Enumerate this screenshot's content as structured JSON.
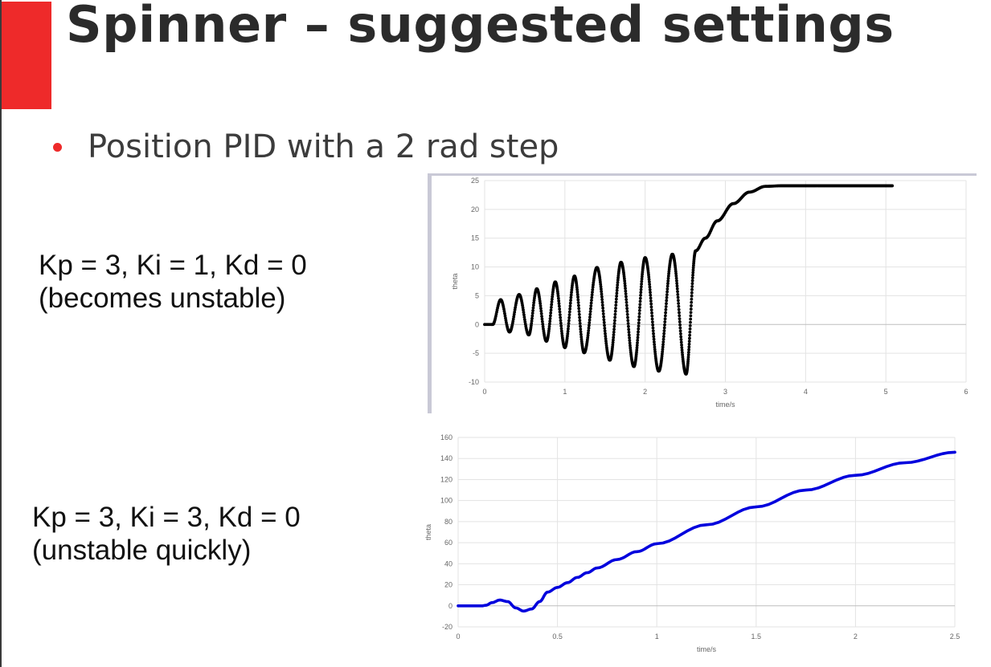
{
  "slide": {
    "title": "Spinner – suggested settings",
    "bullet": "Position PID with a 2 rad step",
    "accent_color": "#ee2a2a"
  },
  "cases": [
    {
      "line1": "Kp = 3, Ki = 1, Kd = 0",
      "line2": "(becomes unstable)"
    },
    {
      "line1": "Kp = 3, Ki = 3, Kd = 0",
      "line2": "(unstable quickly)"
    }
  ],
  "chart_data": [
    {
      "type": "scatter",
      "title": "",
      "xlabel": "time/s",
      "ylabel": "theta",
      "xlim": [
        0,
        6
      ],
      "ylim": [
        -10,
        25
      ],
      "xticks": [
        0,
        1,
        2,
        3,
        4,
        5,
        6
      ],
      "yticks": [
        -10,
        -5,
        0,
        5,
        10,
        15,
        20,
        25
      ],
      "grid": true,
      "color": "#000000",
      "points": [
        [
          0.0,
          0
        ],
        [
          0.08,
          0
        ],
        [
          0.1,
          0
        ],
        [
          0.2,
          4.3
        ],
        [
          0.31,
          -1.3
        ],
        [
          0.43,
          5.2
        ],
        [
          0.55,
          -1.8
        ],
        [
          0.65,
          6.2
        ],
        [
          0.77,
          -2.9
        ],
        [
          0.88,
          7.4
        ],
        [
          1.0,
          -4.0
        ],
        [
          1.12,
          8.4
        ],
        [
          1.24,
          -4.9
        ],
        [
          1.4,
          9.9
        ],
        [
          1.56,
          -6.2
        ],
        [
          1.7,
          10.8
        ],
        [
          1.86,
          -7.3
        ],
        [
          2.0,
          11.6
        ],
        [
          2.17,
          -8.1
        ],
        [
          2.34,
          12.2
        ],
        [
          2.51,
          -8.6
        ],
        [
          2.63,
          12.8
        ],
        [
          2.75,
          15.0
        ],
        [
          2.9,
          18.0
        ],
        [
          3.1,
          21.0
        ],
        [
          3.3,
          23.0
        ],
        [
          3.5,
          24.0
        ],
        [
          3.7,
          24.1
        ],
        [
          4.0,
          24.1
        ],
        [
          4.5,
          24.1
        ],
        [
          5.08,
          24.1
        ]
      ]
    },
    {
      "type": "line",
      "title": "",
      "xlabel": "time/s",
      "ylabel": "theta",
      "xlim": [
        0,
        2.5
      ],
      "ylim": [
        -20,
        160
      ],
      "xticks": [
        0,
        0.5,
        1,
        1.5,
        2,
        2.5
      ],
      "yticks": [
        -20,
        0,
        20,
        40,
        60,
        80,
        100,
        120,
        140,
        160
      ],
      "grid": true,
      "color": "#0000dd",
      "points": [
        [
          0.0,
          0
        ],
        [
          0.12,
          0
        ],
        [
          0.14,
          0.5
        ],
        [
          0.17,
          3
        ],
        [
          0.21,
          5.5
        ],
        [
          0.25,
          4
        ],
        [
          0.29,
          -2
        ],
        [
          0.33,
          -5
        ],
        [
          0.37,
          -3
        ],
        [
          0.41,
          4
        ],
        [
          0.45,
          13
        ],
        [
          0.5,
          17.5
        ],
        [
          0.55,
          22
        ],
        [
          0.6,
          27
        ],
        [
          0.65,
          31.5
        ],
        [
          0.7,
          36
        ],
        [
          0.8,
          44
        ],
        [
          0.9,
          51.5
        ],
        [
          1.0,
          59
        ],
        [
          1.25,
          77
        ],
        [
          1.5,
          94
        ],
        [
          1.75,
          110
        ],
        [
          2.0,
          124
        ],
        [
          2.25,
          136
        ],
        [
          2.5,
          146
        ]
      ]
    }
  ]
}
